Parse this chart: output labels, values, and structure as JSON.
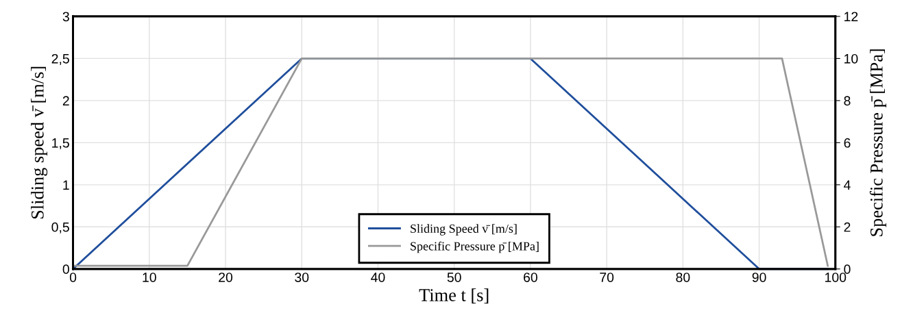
{
  "chart_data": {
    "type": "line",
    "xlabel": "Time t [s]",
    "ylabel": "Sliding speed v̄ [m/s]",
    "y2label": "Specific Pressure p̄ [MPa]",
    "series": [
      {
        "name": "Sliding Speed v̄ [m/s]",
        "color": "#1f4e9c",
        "x": [
          0,
          30,
          60,
          90,
          99
        ],
        "values": [
          0,
          2.5,
          2.5,
          0,
          0
        ]
      },
      {
        "name": "Specific Pressure p̄ [MPa]",
        "color": "#999999",
        "axis": "y2",
        "x": [
          0,
          15,
          30,
          93,
          99
        ],
        "values": [
          0.15,
          0.15,
          10,
          10,
          0.15
        ]
      }
    ],
    "xlim": [
      0,
      100
    ],
    "xticks": [
      0,
      10,
      20,
      30,
      40,
      50,
      60,
      70,
      80,
      90,
      100
    ],
    "ylim": [
      0,
      3
    ],
    "yticks": [
      0,
      {
        "value": 0.5,
        "label": "0,5"
      },
      1,
      {
        "value": 1.5,
        "label": "1,5"
      },
      2,
      {
        "value": 2.5,
        "label": "2,5"
      },
      3
    ],
    "y2lim": [
      0,
      12
    ],
    "y2ticks": [
      0,
      2,
      4,
      6,
      8,
      10,
      12
    ],
    "grid": true,
    "legend": "bottom",
    "marker": "none",
    "line_style": "solid"
  }
}
